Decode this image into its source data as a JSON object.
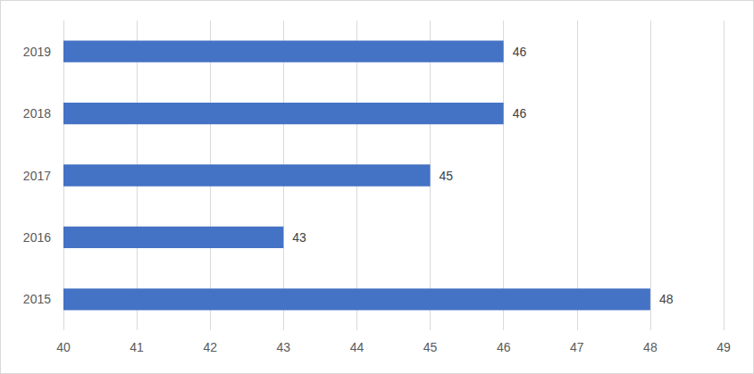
{
  "chart_data": {
    "type": "bar",
    "orientation": "horizontal",
    "categories": [
      "2015",
      "2016",
      "2017",
      "2018",
      "2019"
    ],
    "values": [
      48,
      43,
      45,
      46,
      46
    ],
    "color": "#4472c4",
    "xlim": [
      40,
      49
    ],
    "xticks": [
      40,
      41,
      42,
      43,
      44,
      45,
      46,
      47,
      48,
      49
    ],
    "grid": true,
    "data_labels": true
  }
}
